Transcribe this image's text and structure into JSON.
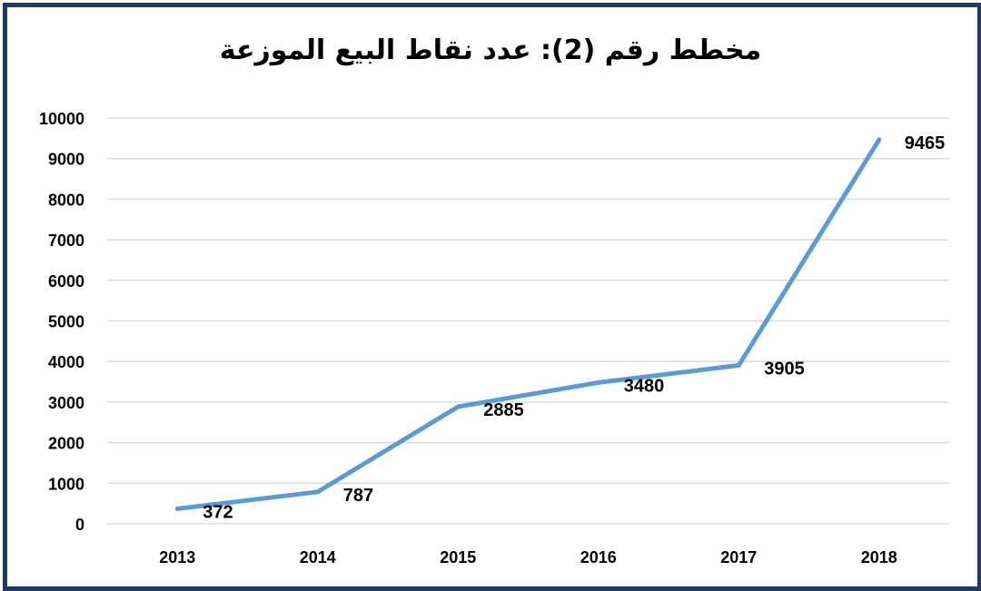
{
  "chart_data": {
    "type": "line",
    "title": "مخطط رقم (2): عدد نقاط البيع الموزعة",
    "categories": [
      "2013",
      "2014",
      "2015",
      "2016",
      "2017",
      "2018"
    ],
    "series": [
      {
        "values": [
          372,
          787,
          2885,
          3480,
          3905,
          9465
        ],
        "color": "#5b9bd5"
      }
    ],
    "ylim": [
      0,
      10000
    ],
    "yticks": [
      0,
      1000,
      2000,
      3000,
      4000,
      5000,
      6000,
      7000,
      8000,
      9000,
      10000
    ],
    "grid": true,
    "legend": "none",
    "frame_color": "#1f3864"
  }
}
